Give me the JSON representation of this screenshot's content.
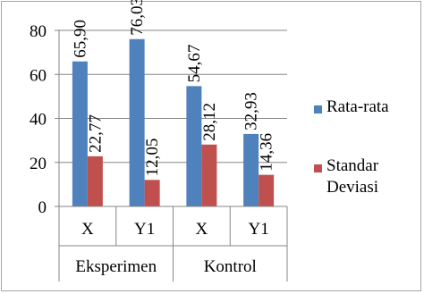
{
  "chart_data": {
    "type": "bar",
    "groups": [
      "Eksperimen",
      "Kontrol"
    ],
    "categories": [
      "X",
      "Y1",
      "X",
      "Y1"
    ],
    "series": [
      {
        "name": "Rata-rata",
        "values": [
          65.9,
          76.03,
          54.67,
          32.93
        ],
        "labels": [
          "65,90",
          "76,03",
          "54,67",
          "32,93"
        ],
        "color": "#4f81bd"
      },
      {
        "name": "Standar Deviasi",
        "values": [
          22.77,
          12.05,
          28.12,
          14.36
        ],
        "labels": [
          "22,77",
          "12,05",
          "28,12",
          "14,36"
        ],
        "color": "#c0504d"
      }
    ],
    "ylim": [
      0,
      80
    ],
    "yticks": [
      "0",
      "20",
      "40",
      "60",
      "80"
    ],
    "grid": true,
    "legend_position": "right"
  },
  "legend": {
    "rata_label": "Rata-rata",
    "sd_line1": "Standar",
    "sd_line2": "Deviasi"
  }
}
